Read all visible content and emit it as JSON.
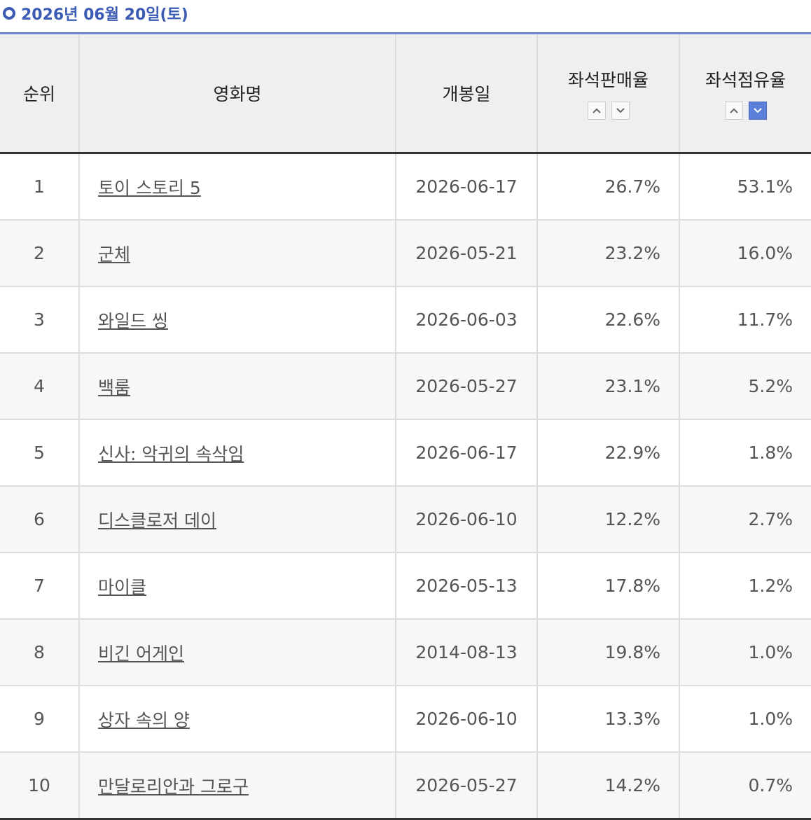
{
  "header": {
    "title": "2026년 06월 20일(토)"
  },
  "table": {
    "columns": [
      "순위",
      "영화명",
      "개봉일",
      "좌석판매율",
      "좌석점유율"
    ],
    "rows": [
      [
        "1",
        "토이 스토리 5",
        "2026-06-17",
        "26.7%",
        "53.1%"
      ],
      [
        "2",
        "군체",
        "2026-05-21",
        "23.2%",
        "16.0%"
      ],
      [
        "3",
        "와일드 씽",
        "2026-06-03",
        "22.6%",
        "11.7%"
      ],
      [
        "4",
        "백룸",
        "2026-05-27",
        "23.1%",
        "5.2%"
      ],
      [
        "5",
        "신사: 악귀의 속삭임",
        "2026-06-17",
        "22.9%",
        "1.8%"
      ],
      [
        "6",
        "디스클로저 데이",
        "2026-06-10",
        "12.2%",
        "2.7%"
      ],
      [
        "7",
        "마이클",
        "2026-05-13",
        "17.8%",
        "1.2%"
      ],
      [
        "8",
        "비긴 어게인",
        "2014-08-13",
        "19.8%",
        "1.0%"
      ],
      [
        "9",
        "상자 속의 양",
        "2026-06-10",
        "13.3%",
        "1.0%"
      ],
      [
        "10",
        "만달로리안과 그로구",
        "2026-05-27",
        "14.2%",
        "0.7%"
      ]
    ]
  }
}
